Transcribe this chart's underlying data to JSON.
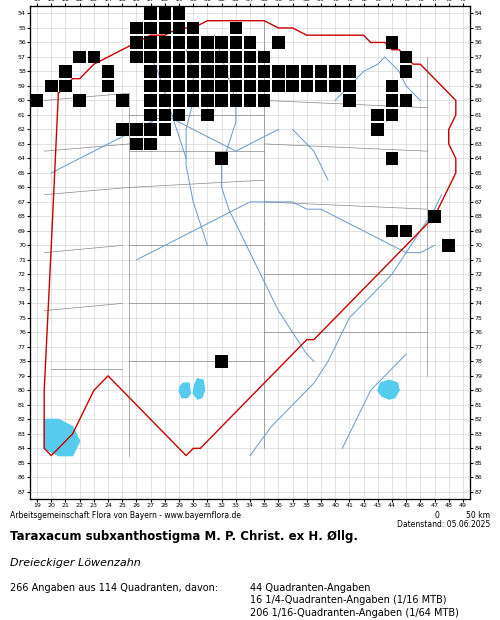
{
  "title_bold": "Taraxacum subxanthostigma M. P. Christ. ex H. Øllg.",
  "title_italic": "Dreieckiger Löwenzahn",
  "footer_left": "Arbeitsgemeinschaft Flora von Bayern - www.bayernflora.de",
  "footer_date": "Datenstand: 05.06.2025",
  "scale_label": "0           50 km",
  "stats_line": "266 Angaben aus 114 Quadranten, davon:",
  "stats_col1": "44 Quadranten-Angaben",
  "stats_col2": "16 1/4-Quadranten-Angaben (1/16 MTB)",
  "stats_col3": "206 1/16-Quadranten-Angaben (1/64 MTB)",
  "x_min": 19,
  "x_max": 49,
  "y_min": 54,
  "y_max": 87,
  "bg_color": "#ffffff",
  "grid_color": "#cccccc",
  "occurrence_points": [
    [
      27,
      54
    ],
    [
      28,
      54
    ],
    [
      29,
      54
    ],
    [
      26,
      55
    ],
    [
      27,
      55
    ],
    [
      28,
      55
    ],
    [
      29,
      55
    ],
    [
      30,
      55
    ],
    [
      33,
      55
    ],
    [
      26,
      56
    ],
    [
      27,
      56
    ],
    [
      28,
      56
    ],
    [
      29,
      56
    ],
    [
      30,
      56
    ],
    [
      31,
      56
    ],
    [
      32,
      56
    ],
    [
      33,
      56
    ],
    [
      34,
      56
    ],
    [
      36,
      56
    ],
    [
      44,
      56
    ],
    [
      22,
      57
    ],
    [
      23,
      57
    ],
    [
      26,
      57
    ],
    [
      27,
      57
    ],
    [
      28,
      57
    ],
    [
      29,
      57
    ],
    [
      30,
      57
    ],
    [
      31,
      57
    ],
    [
      32,
      57
    ],
    [
      33,
      57
    ],
    [
      34,
      57
    ],
    [
      35,
      57
    ],
    [
      45,
      57
    ],
    [
      21,
      58
    ],
    [
      24,
      58
    ],
    [
      27,
      58
    ],
    [
      28,
      58
    ],
    [
      29,
      58
    ],
    [
      30,
      58
    ],
    [
      31,
      58
    ],
    [
      32,
      58
    ],
    [
      33,
      58
    ],
    [
      34,
      58
    ],
    [
      35,
      58
    ],
    [
      36,
      58
    ],
    [
      37,
      58
    ],
    [
      38,
      58
    ],
    [
      39,
      58
    ],
    [
      40,
      58
    ],
    [
      41,
      58
    ],
    [
      45,
      58
    ],
    [
      20,
      59
    ],
    [
      21,
      59
    ],
    [
      24,
      59
    ],
    [
      27,
      59
    ],
    [
      28,
      59
    ],
    [
      29,
      59
    ],
    [
      30,
      59
    ],
    [
      31,
      59
    ],
    [
      32,
      59
    ],
    [
      33,
      59
    ],
    [
      34,
      59
    ],
    [
      35,
      59
    ],
    [
      36,
      59
    ],
    [
      37,
      59
    ],
    [
      38,
      59
    ],
    [
      39,
      59
    ],
    [
      40,
      59
    ],
    [
      41,
      59
    ],
    [
      44,
      59
    ],
    [
      19,
      60
    ],
    [
      22,
      60
    ],
    [
      25,
      60
    ],
    [
      27,
      60
    ],
    [
      28,
      60
    ],
    [
      29,
      60
    ],
    [
      30,
      60
    ],
    [
      31,
      60
    ],
    [
      32,
      60
    ],
    [
      33,
      60
    ],
    [
      34,
      60
    ],
    [
      35,
      60
    ],
    [
      41,
      60
    ],
    [
      44,
      60
    ],
    [
      45,
      60
    ],
    [
      27,
      61
    ],
    [
      28,
      61
    ],
    [
      29,
      61
    ],
    [
      31,
      61
    ],
    [
      43,
      61
    ],
    [
      44,
      61
    ],
    [
      25,
      62
    ],
    [
      26,
      62
    ],
    [
      27,
      62
    ],
    [
      28,
      62
    ],
    [
      43,
      62
    ],
    [
      26,
      63
    ],
    [
      27,
      63
    ],
    [
      32,
      64
    ],
    [
      44,
      64
    ],
    [
      47,
      68
    ],
    [
      44,
      69
    ],
    [
      45,
      69
    ],
    [
      48,
      70
    ],
    [
      32,
      78
    ]
  ],
  "bavaria_border_x": [
    20.5,
    21.0,
    21.5,
    22.0,
    22.5,
    23.0,
    24.0,
    25.0,
    26.0,
    27.0,
    28.0,
    29.0,
    30.0,
    31.0,
    32.0,
    33.0,
    34.0,
    35.0,
    36.0,
    37.0,
    38.0,
    39.0,
    40.0,
    41.0,
    41.5,
    42.0,
    42.5,
    43.0,
    43.5,
    44.0,
    44.5,
    45.0,
    45.5,
    46.0,
    46.5,
    47.0,
    47.5,
    48.0,
    48.5,
    48.5,
    48.0,
    48.0,
    48.5,
    48.5,
    48.0,
    47.5,
    47.0,
    46.5,
    46.0,
    45.5,
    45.0,
    44.5,
    44.0,
    43.5,
    43.0,
    42.5,
    42.0,
    41.5,
    41.0,
    40.5,
    40.0,
    39.5,
    39.0,
    38.5,
    38.0,
    37.5,
    37.0,
    36.5,
    36.0,
    35.5,
    35.0,
    34.5,
    34.0,
    33.5,
    33.0,
    32.5,
    32.0,
    31.5,
    31.0,
    30.5,
    30.0,
    29.5,
    29.0,
    28.5,
    28.0,
    27.5,
    27.0,
    26.5,
    26.0,
    25.5,
    25.0,
    24.5,
    24.0,
    23.5,
    23.0,
    22.5,
    22.0,
    21.5,
    21.0,
    20.5,
    20.0,
    19.5,
    19.5,
    20.0,
    20.5
  ],
  "bavaria_border_y": [
    59.5,
    59.0,
    58.5,
    58.5,
    58.0,
    57.5,
    57.0,
    56.5,
    56.0,
    55.5,
    55.5,
    55.0,
    55.0,
    54.5,
    54.5,
    54.5,
    54.5,
    54.5,
    55.0,
    55.0,
    55.5,
    55.5,
    55.5,
    55.5,
    55.5,
    55.5,
    56.0,
    56.0,
    56.0,
    56.5,
    56.5,
    57.0,
    57.5,
    57.5,
    58.0,
    58.5,
    59.0,
    59.5,
    60.0,
    61.0,
    62.0,
    63.0,
    64.0,
    65.0,
    66.0,
    67.0,
    68.0,
    68.5,
    69.0,
    69.5,
    70.0,
    70.5,
    71.0,
    71.5,
    72.0,
    72.5,
    73.0,
    73.5,
    74.0,
    74.5,
    75.0,
    75.5,
    76.0,
    76.5,
    76.5,
    77.0,
    77.5,
    78.0,
    78.5,
    79.0,
    79.5,
    80.0,
    80.5,
    81.0,
    81.5,
    82.0,
    82.5,
    83.0,
    83.5,
    84.0,
    84.0,
    84.5,
    84.0,
    83.5,
    83.0,
    82.5,
    82.0,
    81.5,
    81.0,
    80.5,
    80.0,
    79.5,
    79.0,
    79.5,
    80.0,
    81.0,
    82.0,
    83.0,
    83.5,
    84.0,
    84.5,
    84.0,
    80.0,
    70.0,
    59.5
  ],
  "bavaria_border_color": "#cc0000",
  "district_border_color": "#888888",
  "river_color": "#6699cc",
  "lake_color": "#55ccee"
}
